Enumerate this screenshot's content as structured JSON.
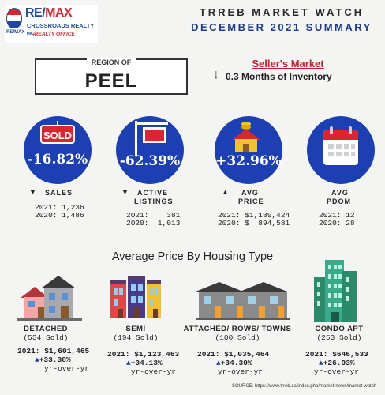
{
  "logo": {
    "small_text": "RE/MAX",
    "brand_re": "RE/",
    "brand_max": "MAX",
    "company": "CROSSROADS REALTY",
    "company_suffix": "INC.",
    "office": "iREALTY OFFICE"
  },
  "header": {
    "title": "TRREB MARKET WATCH",
    "subtitle": "DECEMBER 2021 SUMMARY"
  },
  "region": {
    "label": "REGION OF",
    "name": "PEEL"
  },
  "market": {
    "status": "Seller's Market",
    "inventory": "0.3 Months of Inventory"
  },
  "stats": {
    "sales": {
      "change": "-16.82%",
      "label": "SALES",
      "line1": "2021: 1,236",
      "line2": "2020: 1,486",
      "sign_text": "SOLD"
    },
    "listings": {
      "change": "-62.39%",
      "label1": "ACTIVE",
      "label2": "LISTINGS",
      "line1": "2021:    381",
      "line2": "2020:  1,013"
    },
    "price": {
      "change": "+32.96%",
      "label1": "AVG",
      "label2": "PRICE",
      "line1": "2021: $1,189,424",
      "line2": "2020: $  894,581"
    },
    "pdom": {
      "label1": "AVG",
      "label2": "PDOM",
      "line1": "2021: 12",
      "line2": "2020: 28"
    }
  },
  "section_title": "Average Price By Housing Type",
  "housing": {
    "detached": {
      "type": "DETACHED",
      "sold": "(534 Sold)",
      "price": "2021: $1,601,465",
      "change": "+33.38%",
      "yoy": "yr-over-yr"
    },
    "semi": {
      "type": "SEMI",
      "sold": "(194 Sold)",
      "price": "2021: $1,123,463",
      "change": "+34.13%",
      "yoy": "yr-over-yr"
    },
    "attached": {
      "type": "ATTACHED/ ROWS/ TOWNS",
      "sold": "(100 Sold)",
      "price": "2021: $1,035,464",
      "change": "+34.30%",
      "yoy": "yr-over-yr"
    },
    "condo": {
      "type": "CONDO APT",
      "sold": "(253 Sold)",
      "price": "2021: $646,533",
      "change": "+26.93%",
      "yoy": "yr-over-yr"
    }
  },
  "source": "SOURCE:    https://www.trreb.ca/index.php/market-news/market-watch",
  "colors": {
    "circle_blue": "#1c3fb3",
    "accent_red": "#c8202a",
    "title_blue": "#1c3d8f"
  }
}
